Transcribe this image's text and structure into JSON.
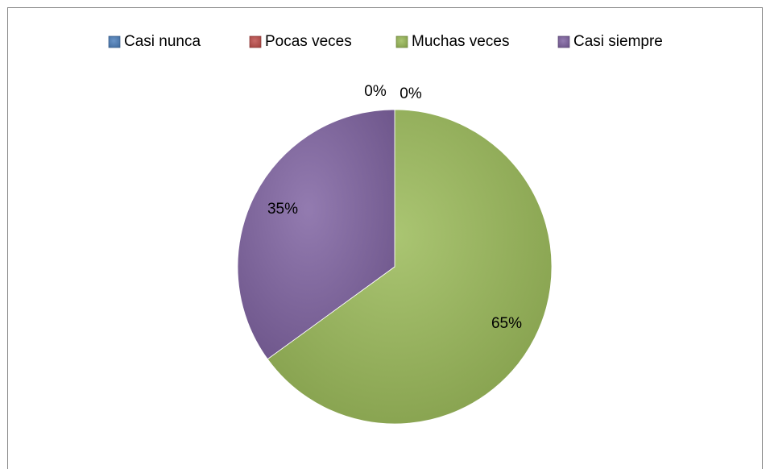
{
  "chart_data": {
    "type": "pie",
    "categories": [
      "Casi nunca",
      "Pocas veces",
      "Muchas veces",
      "Casi siempre"
    ],
    "values": [
      0,
      0,
      65,
      35
    ],
    "value_labels": [
      "0%",
      "0%",
      "65%",
      "35%"
    ],
    "colors": [
      "#4f81bd",
      "#c0504d",
      "#9bbb59",
      "#8064a2"
    ],
    "legend": "top"
  }
}
